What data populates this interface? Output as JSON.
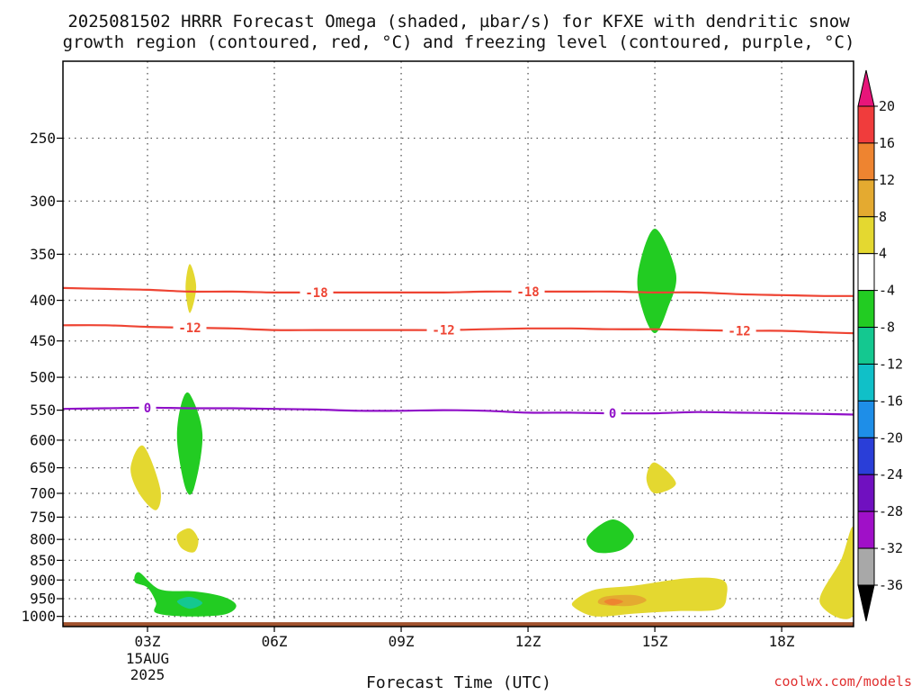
{
  "chart_data": {
    "type": "heatmap",
    "title_lines": [
      "2025081502 HRRR Forecast Omega (shaded, µbar/s) for KFXE with dendritic snow",
      "growth region (contoured, red, °C) and freezing level (contoured, purple, °C)"
    ],
    "xlabel": "Forecast Time (UTC)",
    "ylabel": "",
    "credit": "coolwx.com/models",
    "x_range_hours": [
      1,
      19.7
    ],
    "y_scale": "log-pressure (inverted)",
    "y_range_hpa": [
      1030,
      200
    ],
    "y_ticks": [
      250,
      300,
      350,
      400,
      450,
      500,
      550,
      600,
      650,
      700,
      750,
      800,
      850,
      900,
      950,
      1000
    ],
    "x_ticks": [
      {
        "hour": 3,
        "label": "03Z",
        "sub": [
          "15AUG",
          "2025"
        ]
      },
      {
        "hour": 6,
        "label": "06Z",
        "sub": []
      },
      {
        "hour": 9,
        "label": "09Z",
        "sub": []
      },
      {
        "hour": 12,
        "label": "12Z",
        "sub": []
      },
      {
        "hour": 15,
        "label": "15Z",
        "sub": []
      },
      {
        "hour": 18,
        "label": "18Z",
        "sub": []
      }
    ],
    "grid": true,
    "colorbar": {
      "labels": [
        "20",
        "16",
        "12",
        "8",
        "4",
        "-4",
        "-8",
        "-12",
        "-16",
        "-20",
        "-24",
        "-28",
        "-32",
        "-36"
      ],
      "colors": [
        "#e8157a",
        "#f03c3c",
        "#ee8430",
        "#e4aa30",
        "#e4d830",
        "#ffffff",
        "#22cc22",
        "#14c890",
        "#10c0c8",
        "#1e8ee8",
        "#2a3ed8",
        "#7010c0",
        "#a010c8",
        "#a8a8a8",
        "#000000"
      ]
    },
    "contours": [
      {
        "level": "-18",
        "color": "#ee4433",
        "points": [
          [
            1,
            386
          ],
          [
            2,
            387
          ],
          [
            3,
            388
          ],
          [
            4,
            390
          ],
          [
            5,
            390
          ],
          [
            6,
            391
          ],
          [
            7,
            391
          ],
          [
            8,
            391
          ],
          [
            9,
            391
          ],
          [
            10,
            391
          ],
          [
            11,
            390
          ],
          [
            12,
            390
          ],
          [
            13,
            390
          ],
          [
            14,
            390
          ],
          [
            15,
            391
          ],
          [
            16,
            391
          ],
          [
            17,
            393
          ],
          [
            18,
            394
          ],
          [
            19,
            395
          ],
          [
            19.7,
            395
          ]
        ],
        "labels_at_hours": [
          7,
          12
        ]
      },
      {
        "level": "-12",
        "color": "#ee4433",
        "points": [
          [
            1,
            430
          ],
          [
            2,
            430
          ],
          [
            3,
            432
          ],
          [
            4,
            433
          ],
          [
            5,
            434
          ],
          [
            6,
            436
          ],
          [
            7,
            436
          ],
          [
            8,
            436
          ],
          [
            9,
            436
          ],
          [
            10,
            436
          ],
          [
            11,
            435
          ],
          [
            12,
            434
          ],
          [
            13,
            434
          ],
          [
            14,
            435
          ],
          [
            15,
            435
          ],
          [
            16,
            436
          ],
          [
            17,
            437
          ],
          [
            18,
            437
          ],
          [
            19,
            439
          ],
          [
            19.7,
            440
          ]
        ],
        "labels_at_hours": [
          4,
          10,
          17
        ]
      },
      {
        "level": "0",
        "color": "#9010c8",
        "points": [
          [
            1,
            548
          ],
          [
            2,
            547
          ],
          [
            3,
            546
          ],
          [
            4,
            547
          ],
          [
            5,
            547
          ],
          [
            6,
            548
          ],
          [
            7,
            549
          ],
          [
            8,
            551
          ],
          [
            9,
            551
          ],
          [
            10,
            550
          ],
          [
            11,
            551
          ],
          [
            12,
            554
          ],
          [
            13,
            554
          ],
          [
            14,
            555
          ],
          [
            15,
            555
          ],
          [
            16,
            553
          ],
          [
            17,
            554
          ],
          [
            18,
            555
          ],
          [
            19,
            556
          ],
          [
            19.7,
            557
          ]
        ],
        "labels_at_hours": [
          3,
          14
        ]
      }
    ],
    "omega_regions": [
      {
        "value": 4,
        "color": "#e4d830",
        "points": [
          [
            4,
            360
          ],
          [
            4.15,
            385
          ],
          [
            4,
            415
          ],
          [
            3.9,
            385
          ]
        ]
      },
      {
        "value": 4,
        "color": "#e4d830",
        "points": [
          [
            2.9,
            610
          ],
          [
            3.3,
            690
          ],
          [
            3.2,
            735
          ],
          [
            2.8,
            700
          ],
          [
            2.6,
            650
          ]
        ]
      },
      {
        "value": 4,
        "color": "#e4d830",
        "points": [
          [
            4,
            775
          ],
          [
            4.2,
            800
          ],
          [
            4.1,
            830
          ],
          [
            3.8,
            820
          ],
          [
            3.7,
            790
          ]
        ]
      },
      {
        "value": 4,
        "color": "#e4d830",
        "points": [
          [
            15,
            640
          ],
          [
            15.5,
            680
          ],
          [
            15,
            700
          ],
          [
            14.8,
            670
          ]
        ]
      },
      {
        "value": 4,
        "color": "#e4d830",
        "points": [
          [
            19.7,
            775
          ],
          [
            19.7,
            995
          ],
          [
            18.9,
            960
          ],
          [
            19.4,
            850
          ]
        ]
      },
      {
        "value": 4,
        "color": "#e4d830",
        "points": [
          [
            13.1,
            955
          ],
          [
            13.6,
            925
          ],
          [
            14.5,
            915
          ],
          [
            15.8,
            895
          ],
          [
            16.6,
            900
          ],
          [
            16.7,
            940
          ],
          [
            16.5,
            980
          ],
          [
            15.5,
            985
          ],
          [
            14.5,
            992
          ],
          [
            13.6,
            1000
          ],
          [
            13.1,
            975
          ]
        ]
      },
      {
        "value": -4,
        "color": "#22cc22",
        "points": [
          [
            15,
            325
          ],
          [
            15.5,
            370
          ],
          [
            15.3,
            410
          ],
          [
            15,
            440
          ],
          [
            14.7,
            410
          ],
          [
            14.6,
            370
          ]
        ]
      },
      {
        "value": -4,
        "color": "#22cc22",
        "points": [
          [
            4,
            525
          ],
          [
            4.3,
            590
          ],
          [
            4.1,
            690
          ],
          [
            3.9,
            690
          ],
          [
            3.7,
            600
          ],
          [
            3.8,
            540
          ]
        ]
      },
      {
        "value": -4,
        "color": "#22cc22",
        "points": [
          [
            13.4,
            795
          ],
          [
            14,
            755
          ],
          [
            14.5,
            790
          ],
          [
            14.2,
            825
          ],
          [
            13.6,
            830
          ]
        ]
      },
      {
        "value": -4,
        "color": "#22cc22",
        "points": [
          [
            2.8,
            880
          ],
          [
            3.3,
            925
          ],
          [
            4.1,
            930
          ],
          [
            4.8,
            945
          ],
          [
            5.1,
            970
          ],
          [
            4.8,
            995
          ],
          [
            3.9,
            1000
          ],
          [
            3.2,
            990
          ],
          [
            3.2,
            960
          ],
          [
            3,
            920
          ],
          [
            2.7,
            905
          ]
        ]
      },
      {
        "value": -8,
        "color": "#14c890",
        "points": [
          [
            3.7,
            958
          ],
          [
            4,
            945
          ],
          [
            4.3,
            962
          ],
          [
            4,
            978
          ]
        ]
      },
      {
        "value": 8,
        "color": "#e4aa30",
        "points": [
          [
            13.8,
            945
          ],
          [
            14.5,
            940
          ],
          [
            14.8,
            955
          ],
          [
            14.4,
            970
          ],
          [
            13.7,
            965
          ]
        ]
      },
      {
        "value": 12,
        "color": "#ee8430",
        "points": [
          [
            14,
            950
          ],
          [
            14.25,
            958
          ],
          [
            14,
            968
          ],
          [
            13.8,
            958
          ]
        ]
      }
    ],
    "terrain": {
      "color": "#a0522d",
      "top_hpa": 1017
    }
  }
}
